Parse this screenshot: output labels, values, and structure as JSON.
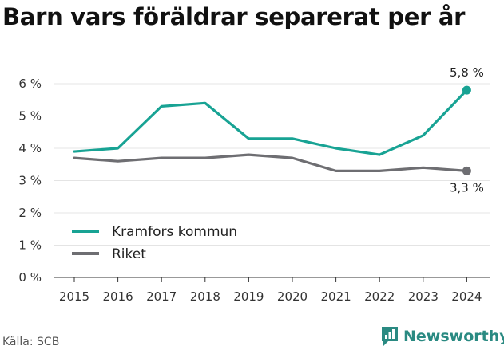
{
  "title": "Barn vars föräldrar separerat per år",
  "source": "Källa: SCB",
  "brand": {
    "name": "Newsworthy",
    "icon": "newsworthy-logo-icon"
  },
  "chart_data": {
    "type": "line",
    "x": [
      "2015",
      "2016",
      "2017",
      "2018",
      "2019",
      "2020",
      "2021",
      "2022",
      "2023",
      "2024"
    ],
    "series": [
      {
        "name": "Kramfors kommun",
        "color": "#18a394",
        "values": [
          3.9,
          4.0,
          5.3,
          5.4,
          4.3,
          4.3,
          4.0,
          3.8,
          4.4,
          5.8
        ],
        "end_label": "5,8 %"
      },
      {
        "name": "Riket",
        "color": "#6e6e72",
        "values": [
          3.7,
          3.6,
          3.7,
          3.7,
          3.8,
          3.7,
          3.3,
          3.3,
          3.4,
          3.3
        ],
        "end_label": "3,3 %"
      }
    ],
    "ylim": [
      0,
      6
    ],
    "yticks": [
      "0 %",
      "1 %",
      "2 %",
      "3 %",
      "4 %",
      "5 %",
      "6 %"
    ],
    "grid": true,
    "legend": "bottom-left"
  }
}
